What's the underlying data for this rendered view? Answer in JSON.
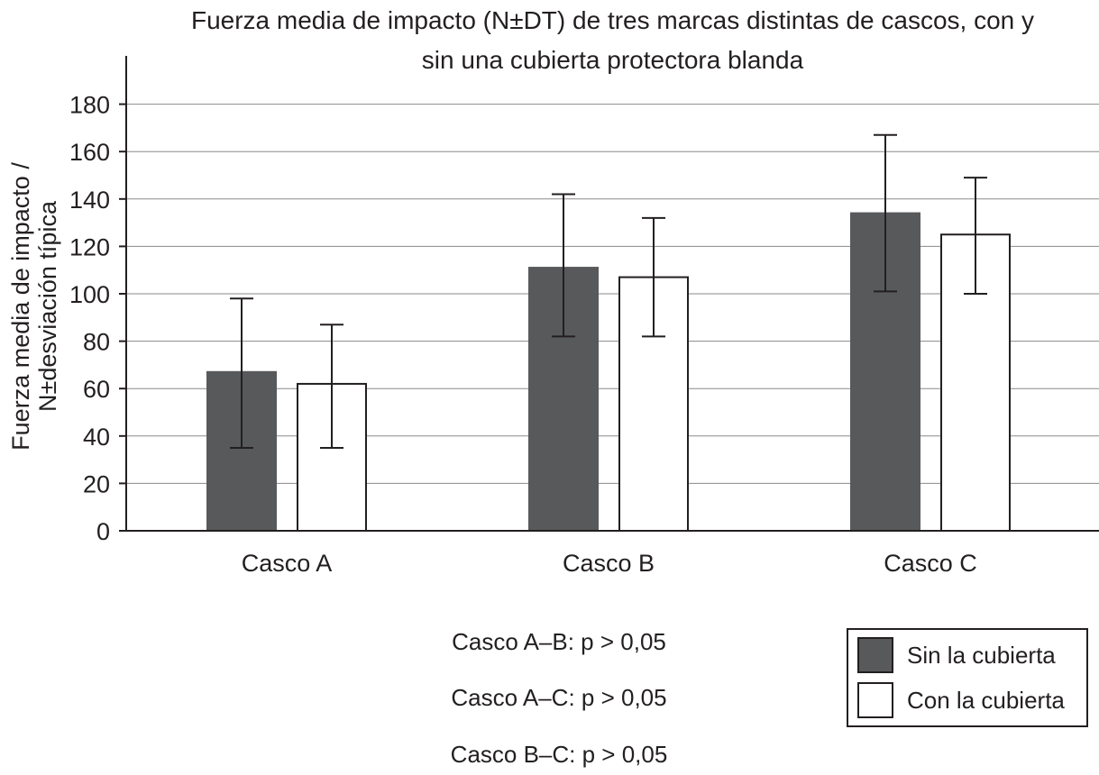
{
  "chart_data": {
    "type": "bar",
    "title_lines": [
      "Fuerza media de impacto (N±DT) de tres marcas distintas de cascos, con y",
      "sin una cubierta protectora blanda"
    ],
    "ylabel_lines": [
      "Fuerza media de impacto /",
      "N±desviación típica"
    ],
    "xlabel": "",
    "categories": [
      "Casco A",
      "Casco B",
      "Casco C"
    ],
    "ylim": [
      0,
      190
    ],
    "yticks": [
      0,
      20,
      40,
      60,
      80,
      100,
      120,
      140,
      160,
      180
    ],
    "grid": true,
    "series": [
      {
        "name": "Sin la cubierta",
        "color": "#58595b",
        "values": [
          67,
          111,
          134
        ],
        "error_low": [
          35,
          82,
          101
        ],
        "error_high": [
          98,
          142,
          167
        ]
      },
      {
        "name": "Con la cubierta",
        "color": "#ffffff",
        "values": [
          62,
          107,
          125
        ],
        "error_low": [
          35,
          82,
          100
        ],
        "error_high": [
          87,
          132,
          149
        ]
      }
    ],
    "legend_position": "bottom-right",
    "annotations": [
      "Casco A–B: p > 0,05",
      "Casco A–C: p > 0,05",
      "Casco B–C: p > 0,05"
    ]
  }
}
